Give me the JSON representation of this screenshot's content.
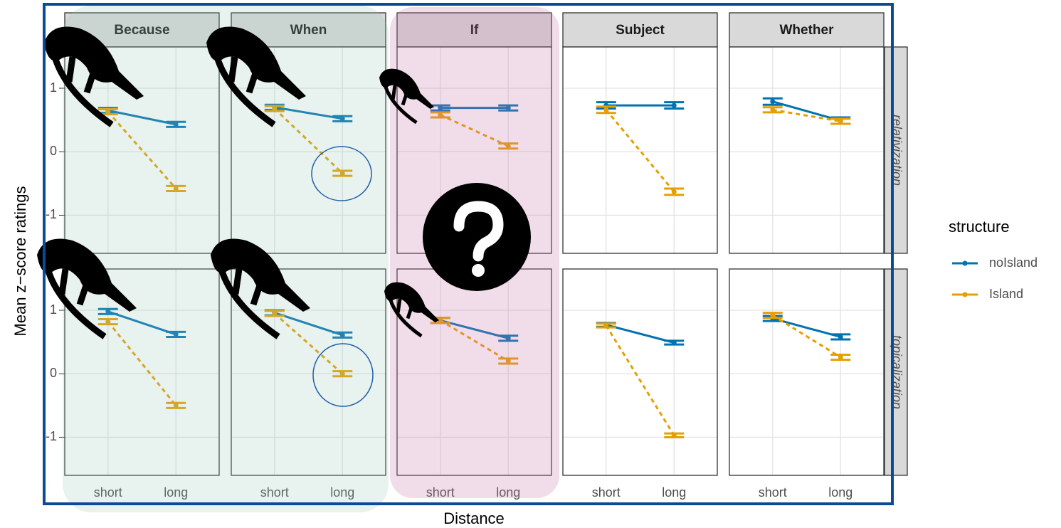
{
  "chart_data": {
    "type": "line",
    "xlabel": "Distance",
    "ylabel": "Mean z−score ratings",
    "legend_title": "structure",
    "categories": [
      "short",
      "long"
    ],
    "ylim": [
      -1.6,
      1.65
    ],
    "yticks": [
      -1,
      0,
      1
    ],
    "grid": true,
    "columns": [
      "Because",
      "When",
      "If",
      "Subject",
      "Whether"
    ],
    "series": [
      {
        "name": "noIsland",
        "color": "#0072B2",
        "linestyle": "solid"
      },
      {
        "name": "Island",
        "color": "#E69F00",
        "linestyle": "dashed"
      }
    ],
    "facet_rows": [
      {
        "label": "relativization",
        "panels": [
          {
            "series": [
              {
                "values": [
                  0.65,
                  0.43
                ],
                "errors": [
                  0.04,
                  0.04
                ]
              },
              {
                "values": [
                  0.63,
                  -0.58
                ],
                "errors": [
                  0.04,
                  0.04
                ]
              }
            ]
          },
          {
            "series": [
              {
                "values": [
                  0.7,
                  0.52
                ],
                "errors": [
                  0.04,
                  0.04
                ]
              },
              {
                "values": [
                  0.68,
                  -0.34
                ],
                "errors": [
                  0.04,
                  0.04
                ]
              }
            ]
          },
          {
            "series": [
              {
                "values": [
                  0.69,
                  0.69
                ],
                "errors": [
                  0.04,
                  0.04
                ]
              },
              {
                "values": [
                  0.58,
                  0.09
                ],
                "errors": [
                  0.04,
                  0.04
                ]
              }
            ]
          },
          {
            "series": [
              {
                "values": [
                  0.73,
                  0.73
                ],
                "errors": [
                  0.05,
                  0.05
                ]
              },
              {
                "values": [
                  0.66,
                  -0.63
                ],
                "errors": [
                  0.05,
                  0.05
                ]
              }
            ]
          },
          {
            "series": [
              {
                "values": [
                  0.79,
                  0.49
                ],
                "errors": [
                  0.05,
                  0.05
                ]
              },
              {
                "values": [
                  0.66,
                  0.48
                ],
                "errors": [
                  0.04,
                  0.04
                ]
              }
            ]
          }
        ]
      },
      {
        "label": "topicalization",
        "panels": [
          {
            "series": [
              {
                "values": [
                  0.98,
                  0.62
                ],
                "errors": [
                  0.04,
                  0.04
                ]
              },
              {
                "values": [
                  0.82,
                  -0.5
                ],
                "errors": [
                  0.04,
                  0.04
                ]
              }
            ]
          },
          {
            "series": [
              {
                "values": [
                  0.96,
                  0.61
                ],
                "errors": [
                  0.04,
                  0.04
                ]
              },
              {
                "values": [
                  0.95,
                  0.0
                ],
                "errors": [
                  0.04,
                  0.04
                ]
              }
            ]
          },
          {
            "series": [
              {
                "values": [
                  0.84,
                  0.56
                ],
                "errors": [
                  0.04,
                  0.04
                ]
              },
              {
                "values": [
                  0.84,
                  0.2
                ],
                "errors": [
                  0.04,
                  0.04
                ]
              }
            ]
          },
          {
            "series": [
              {
                "values": [
                  0.77,
                  0.49
                ],
                "errors": [
                  0.03,
                  0.03
                ]
              },
              {
                "values": [
                  0.76,
                  -0.97
                ],
                "errors": [
                  0.03,
                  0.03
                ]
              }
            ]
          },
          {
            "series": [
              {
                "values": [
                  0.87,
                  0.58
                ],
                "errors": [
                  0.04,
                  0.04
                ]
              },
              {
                "values": [
                  0.92,
                  0.26
                ],
                "errors": [
                  0.04,
                  0.04
                ]
              }
            ]
          }
        ]
      }
    ]
  }
}
